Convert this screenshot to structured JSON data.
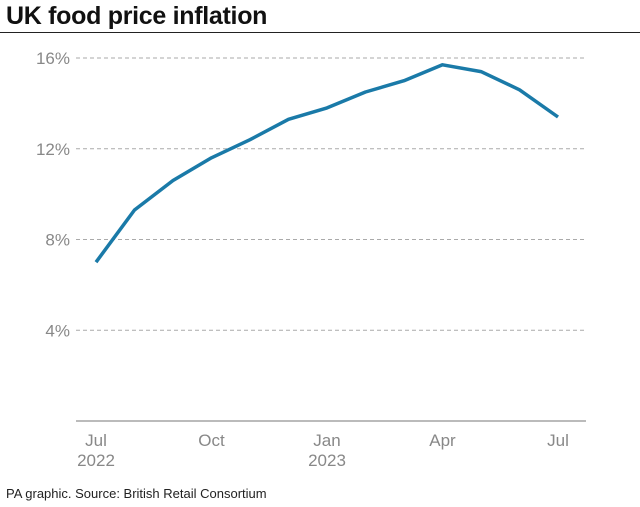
{
  "title": "UK food price inflation",
  "source": "PA graphic. Source: British Retail Consortium",
  "colors": {
    "line": "#1a7aa8",
    "grid": "#aaaaaa",
    "axis": "#777777",
    "tick_text": "#888888"
  },
  "chart_data": {
    "type": "line",
    "title": "UK food price inflation",
    "xlabel": "",
    "ylabel": "",
    "ylim": [
      0,
      16
    ],
    "yticks": [
      {
        "value": 4,
        "label": "4%"
      },
      {
        "value": 8,
        "label": "8%"
      },
      {
        "value": 12,
        "label": "12%"
      },
      {
        "value": 16,
        "label": "16%"
      }
    ],
    "xticks": [
      {
        "x": "2022-07",
        "label": "Jul",
        "sublabel": "2022"
      },
      {
        "x": "2022-10",
        "label": "Oct",
        "sublabel": ""
      },
      {
        "x": "2023-01",
        "label": "Jan",
        "sublabel": "2023"
      },
      {
        "x": "2023-04",
        "label": "Apr",
        "sublabel": ""
      },
      {
        "x": "2023-07",
        "label": "Jul",
        "sublabel": ""
      }
    ],
    "x": [
      "2022-07",
      "2022-08",
      "2022-09",
      "2022-10",
      "2022-11",
      "2022-12",
      "2023-01",
      "2023-02",
      "2023-03",
      "2023-04",
      "2023-05",
      "2023-06",
      "2023-07"
    ],
    "series": [
      {
        "values": [
          7.0,
          9.3,
          10.6,
          11.6,
          12.4,
          13.3,
          13.8,
          14.5,
          15.0,
          15.7,
          15.4,
          14.6,
          13.4
        ]
      }
    ],
    "grid": "horizontal dashed",
    "legend": "none"
  }
}
